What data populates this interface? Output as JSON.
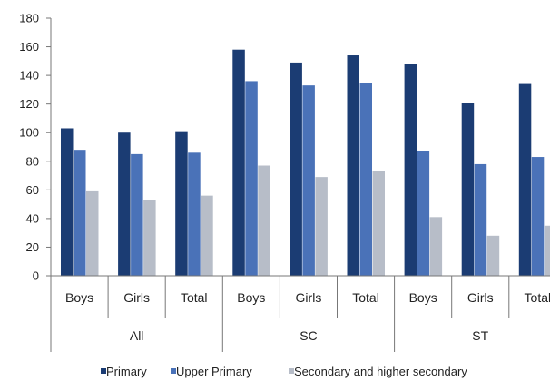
{
  "chart_data": {
    "type": "bar",
    "title": "",
    "xlabel": "",
    "ylabel": "",
    "ylim": [
      0,
      180
    ],
    "ytick_step": 20,
    "grid": false,
    "legend_position": "bottom",
    "groups": [
      {
        "label": "All",
        "categories": [
          "Boys",
          "Girls",
          "Total"
        ]
      },
      {
        "label": "SC",
        "categories": [
          "Boys",
          "Girls",
          "Total"
        ]
      },
      {
        "label": "ST",
        "categories": [
          "Boys",
          "Girls",
          "Total"
        ]
      }
    ],
    "series": [
      {
        "name": "Primary",
        "color": "#1b3c73",
        "values": [
          103,
          100,
          101,
          158,
          149,
          154,
          148,
          121,
          134
        ]
      },
      {
        "name": "Upper Primary",
        "color": "#4a72b8",
        "values": [
          88,
          85,
          86,
          136,
          133,
          135,
          87,
          78,
          83
        ]
      },
      {
        "name": "Secondary and higher secondary",
        "color": "#b7bdc8",
        "values": [
          59,
          53,
          56,
          77,
          69,
          73,
          41,
          28,
          35
        ]
      }
    ]
  }
}
